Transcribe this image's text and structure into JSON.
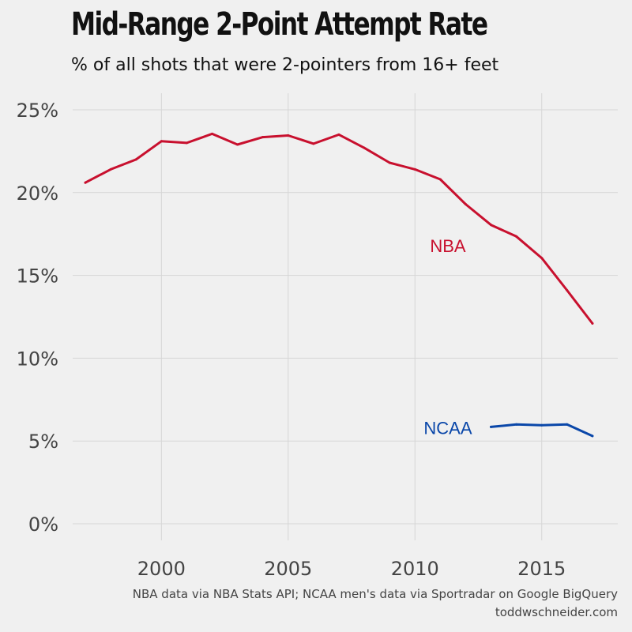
{
  "title": "Mid-Range 2-Point Attempt Rate",
  "subtitle": "% of all shots that were 2-pointers from 16+ feet",
  "caption": {
    "line1": "NBA data via NBA Stats API; NCAA men's data via Sportradar on Google BigQuery",
    "line2": "toddwschneider.com"
  },
  "colors": {
    "nba": "#c8102e",
    "ncaa": "#0a47a9",
    "grid": "#d6d6d6",
    "background": "#f0f0f0",
    "tick_text": "#444444"
  },
  "chart_data": {
    "type": "line",
    "title": "Mid-Range 2-Point Attempt Rate",
    "subtitle": "% of all shots that were 2-pointers from 16+ feet",
    "xlabel": "",
    "ylabel": "",
    "xlim": [
      1996.5,
      2018
    ],
    "ylim": [
      -1,
      26
    ],
    "x_ticks": [
      2000,
      2005,
      2010,
      2015
    ],
    "x_tick_labels": [
      "2000",
      "2005",
      "2010",
      "2015"
    ],
    "y_ticks": [
      0,
      5,
      10,
      15,
      20,
      25
    ],
    "y_tick_labels": [
      "0%",
      "5%",
      "10%",
      "15%",
      "20%",
      "25%"
    ],
    "grid": true,
    "legend": "direct labels",
    "series": [
      {
        "name": "NBA",
        "color": "#c8102e",
        "x": [
          1997,
          1998,
          1999,
          2000,
          2001,
          2002,
          2003,
          2004,
          2005,
          2006,
          2007,
          2008,
          2009,
          2010,
          2011,
          2012,
          2013,
          2014,
          2015,
          2016,
          2017
        ],
        "y": [
          20.6,
          21.4,
          22.0,
          23.1,
          23.0,
          23.55,
          22.9,
          23.35,
          23.45,
          22.95,
          23.5,
          22.7,
          21.8,
          21.4,
          20.8,
          19.3,
          18.05,
          17.35,
          16.05,
          14.1,
          12.1
        ],
        "label": "NBA",
        "label_at": [
          2011.3,
          16.8
        ]
      },
      {
        "name": "NCAA",
        "color": "#0a47a9",
        "x": [
          2013,
          2014,
          2015,
          2016,
          2017
        ],
        "y": [
          5.85,
          6.0,
          5.95,
          6.0,
          5.3
        ],
        "label": "NCAA",
        "label_at": [
          2011.3,
          5.8
        ]
      }
    ]
  }
}
